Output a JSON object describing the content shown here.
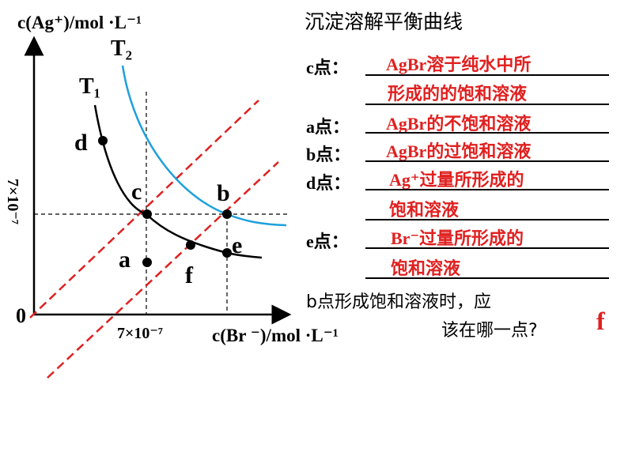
{
  "graph": {
    "y_axis_label": "c(Ag⁺)/mol ·L⁻¹",
    "x_axis_label": "c(Br ⁻)/mol ·L⁻¹",
    "origin_label": "0",
    "x_tick_label": "7×10⁻⁷",
    "y_tick_label": "7×10⁻⁷",
    "curve_t1_label": "T₁",
    "curve_t2_label": "T₂",
    "point_labels": [
      "a",
      "b",
      "c",
      "d",
      "e",
      "f"
    ],
    "colors": {
      "t1_curve": "#000000",
      "t2_curve": "#1ea0dc",
      "diagonals": "#e02020",
      "axes": "#000000"
    }
  },
  "panel": {
    "title": "沉淀溶解平衡曲线",
    "items": [
      {
        "label": "c点：",
        "answer_line1": "AgBr溶于纯水中所",
        "answer_line2": "形成的的饱和溶液"
      },
      {
        "label": "a点：",
        "answer_line1": "AgBr的不饱和溶液"
      },
      {
        "label": "b点：",
        "answer_line1": "AgBr的过饱和溶液"
      },
      {
        "label": "d点：",
        "answer_line1": "Ag⁺过量所形成的",
        "answer_line2": "饱和溶液"
      },
      {
        "label": "e点：",
        "answer_line1": "Br⁻过量所形成的",
        "answer_line2": "饱和溶液"
      }
    ],
    "question_line1": "b点形成饱和溶液时，应",
    "question_line2": "该在哪一点?",
    "question_answer": "f"
  }
}
